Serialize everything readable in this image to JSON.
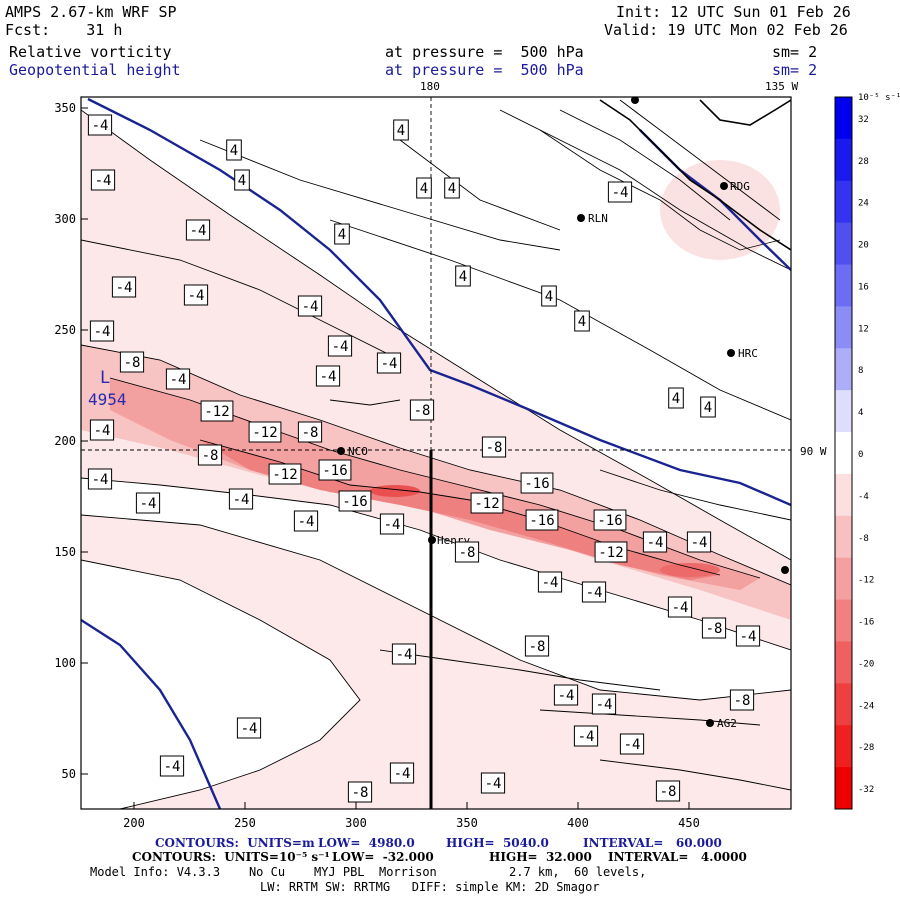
{
  "header": {
    "model": "AMPS 2.67-km WRF SP",
    "fcst": "Fcst:    31 h",
    "init": "Init: 12 UTC Sun 01 Feb 26",
    "valid": "Valid: 19 UTC Mon 02 Feb 26",
    "field1": "Relative vorticity",
    "field2": "Geopotential height",
    "pressure1": "at pressure =  500 hPa",
    "pressure2": "at pressure =  500 hPa",
    "sm1": "sm= 2",
    "sm2": "sm= 2"
  },
  "map": {
    "meridian_top_label": "180",
    "meridian_right_label": "135 W",
    "parallel_label": "90 W",
    "low_label": "L",
    "low_value": "4954",
    "x_ticks": [
      "200",
      "250",
      "300",
      "350",
      "400",
      "450"
    ],
    "y_ticks": [
      "50",
      "100",
      "150",
      "200",
      "250",
      "300",
      "350"
    ],
    "stations": [
      "RDG",
      "RLN",
      "HRC",
      "NCO",
      "Henry",
      "AG2"
    ],
    "vort_labels": [
      "-4",
      "4",
      "4",
      "4",
      "-4",
      "4",
      "4",
      "-4",
      "4",
      "-4",
      "-4",
      "4",
      "-4",
      "-4",
      "4",
      "-4",
      "4",
      "-4",
      "-4",
      "-4",
      "-8",
      "-4",
      "-8",
      "4",
      "4",
      "-12",
      "-12",
      "-8",
      "-4",
      "-8",
      "-8",
      "-16",
      "-12",
      "-16",
      "-12",
      "-16",
      "-16",
      "-12",
      "-4",
      "-4",
      "-4",
      "-4",
      "-4",
      "-4",
      "-16",
      "-4",
      "-8",
      "-4",
      "-4",
      "-8",
      "-4",
      "-4",
      "-4",
      "-4",
      "-4",
      "-8",
      "-8",
      "-4",
      "-4",
      "-4",
      "-4",
      "-4",
      "-8",
      "-4",
      "-8"
    ]
  },
  "colorbar": {
    "unit": "10⁻⁵ s⁻¹",
    "ticks": [
      "32",
      "28",
      "24",
      "20",
      "16",
      "12",
      "8",
      "4",
      "0",
      "-4",
      "-8",
      "-12",
      "-16",
      "-20",
      "-24",
      "-28",
      "-32"
    ],
    "colors": [
      "#0000ee",
      "#1a1aee",
      "#3434f0",
      "#5050f2",
      "#6c6cf4",
      "#8c8cf6",
      "#aeaef8",
      "#dedefc",
      "#ffffff",
      "#fce0e0",
      "#f8c0c0",
      "#f4a0a0",
      "#f28080",
      "#f06060",
      "#ee4040",
      "#ee2020",
      "#ee0000"
    ]
  },
  "footer": {
    "line1_label": "CONTOURS:  UNITS=m",
    "line1_low": "LOW=  4980.0",
    "line1_high": "HIGH=  5040.0",
    "line1_interval": "INTERVAL=   60.000",
    "line2_label": "CONTOURS:  UNITS=10⁻⁵ s⁻¹",
    "line2_low": "LOW=  -32.000",
    "line2_high": "HIGH=  32.000",
    "line2_interval": "INTERVAL=   4.0000",
    "line3": "Model Info: V4.3.3    No Cu    MYJ PBL  Morrison          2.7 km,  60 levels,",
    "line4": "LW: RRTM SW: RRTMG   DIFF: simple KM: 2D Smagor"
  }
}
